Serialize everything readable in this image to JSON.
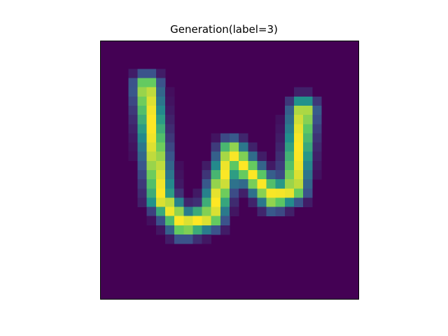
{
  "title": "Generation(label=3)",
  "image": {
    "description_semantic": "generated-handwritten-glyph",
    "colormap": "viridis",
    "grid_size": 28,
    "background_color": "#440154"
  }
}
